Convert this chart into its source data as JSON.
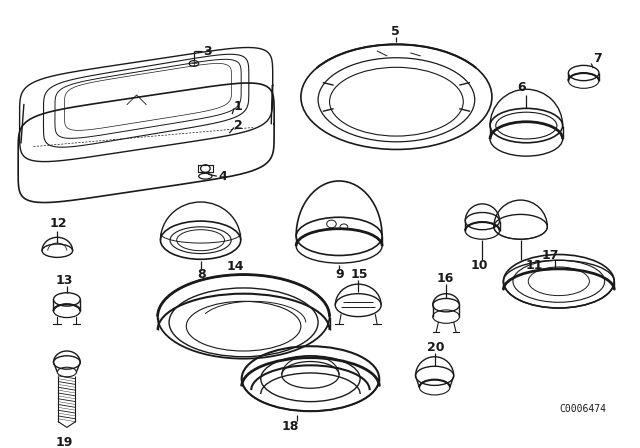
{
  "background_color": "#ffffff",
  "diagram_code": "C0006474",
  "line_color": "#1a1a1a",
  "label_fontsize": 9,
  "label_fontweight": "bold"
}
